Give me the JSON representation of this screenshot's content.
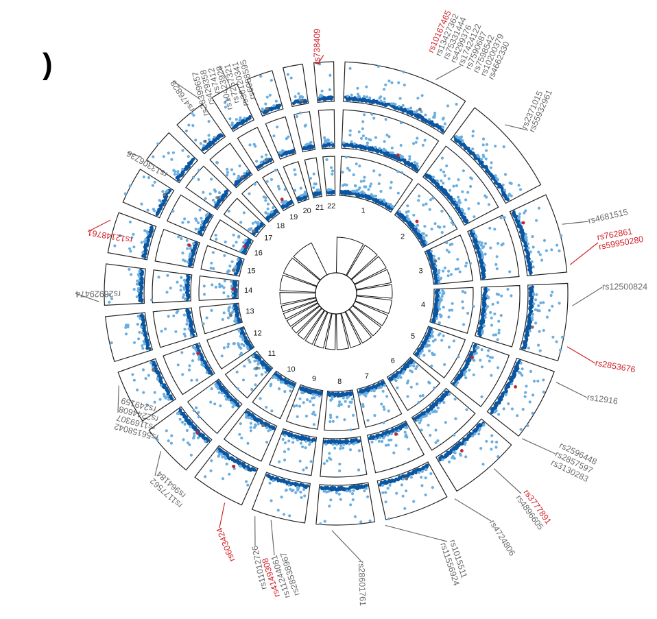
{
  "chart_data": {
    "type": "scatter",
    "title": "",
    "chromosomes": [
      "1",
      "2",
      "3",
      "4",
      "5",
      "6",
      "7",
      "8",
      "9",
      "10",
      "11",
      "12",
      "13",
      "14",
      "15",
      "16",
      "17",
      "18",
      "19",
      "20",
      "21",
      "22"
    ],
    "tracks": 3,
    "colors": {
      "segment_outline": "#222222",
      "point_dark": "#0b56a0",
      "point_light": "#6aaee0",
      "point_grey": "#707070",
      "point_red": "#c8202a",
      "label_grey": "#6a6a6a",
      "label_red": "#d2232a"
    },
    "snp_labels": [
      {
        "names": [
          "rs738409"
        ],
        "color": "red"
      },
      {
        "names": [
          "rs10167465",
          "rs13427362",
          "rs75331444",
          "rs4299376",
          "rs17424122",
          "rs7590687",
          "rs7598542",
          "rs10200379",
          "rs4662330"
        ],
        "color": "mixed"
      },
      {
        "names": [
          "rs2371015",
          "rs55932961"
        ],
        "color": "grey"
      },
      {
        "names": [
          "rs4681515"
        ],
        "color": "grey"
      },
      {
        "names": [
          "rs762861",
          "rs59950280"
        ],
        "color": "red"
      },
      {
        "names": [
          "rs12500824"
        ],
        "color": "grey"
      },
      {
        "names": [
          "rs2853676"
        ],
        "color": "red"
      },
      {
        "names": [
          "rs12916"
        ],
        "color": "grey"
      },
      {
        "names": [
          "rs2596448",
          "rs2857597",
          "rs3130283"
        ],
        "color": "grey"
      },
      {
        "names": [
          "rs3777891",
          "rs4896605"
        ],
        "color": "mixed"
      },
      {
        "names": [
          "rs4724806"
        ],
        "color": "grey"
      },
      {
        "names": [
          "rs1015511",
          "rs11556924"
        ],
        "color": "grey"
      },
      {
        "names": [
          "rs28601761"
        ],
        "color": "grey"
      },
      {
        "names": [
          "rs4149308",
          "rs11244061",
          "rs28538967"
        ],
        "color": "mixed"
      },
      {
        "names": [
          "rs11012726"
        ],
        "color": "grey"
      },
      {
        "names": [
          "rs603424"
        ],
        "color": "red"
      },
      {
        "names": [
          "rs1177562",
          "rs964184"
        ],
        "color": "grey"
      },
      {
        "names": [
          "rs56158042",
          "rs1169307",
          "rs2244608",
          "rs249159"
        ],
        "color": "grey"
      },
      {
        "names": [
          "rs28929474"
        ],
        "color": "grey"
      },
      {
        "names": [
          "rs12148761"
        ],
        "color": "red"
      },
      {
        "names": [
          "rs13306736"
        ],
        "color": "grey"
      },
      {
        "names": [
          "rs476828"
        ],
        "color": "grey"
      },
      {
        "names": [
          "rs28399657",
          "rs429358",
          "rs7412",
          "rs10423928",
          "rs7257321",
          "rs36120341",
          "rs6088595"
        ],
        "color": "grey"
      }
    ]
  }
}
